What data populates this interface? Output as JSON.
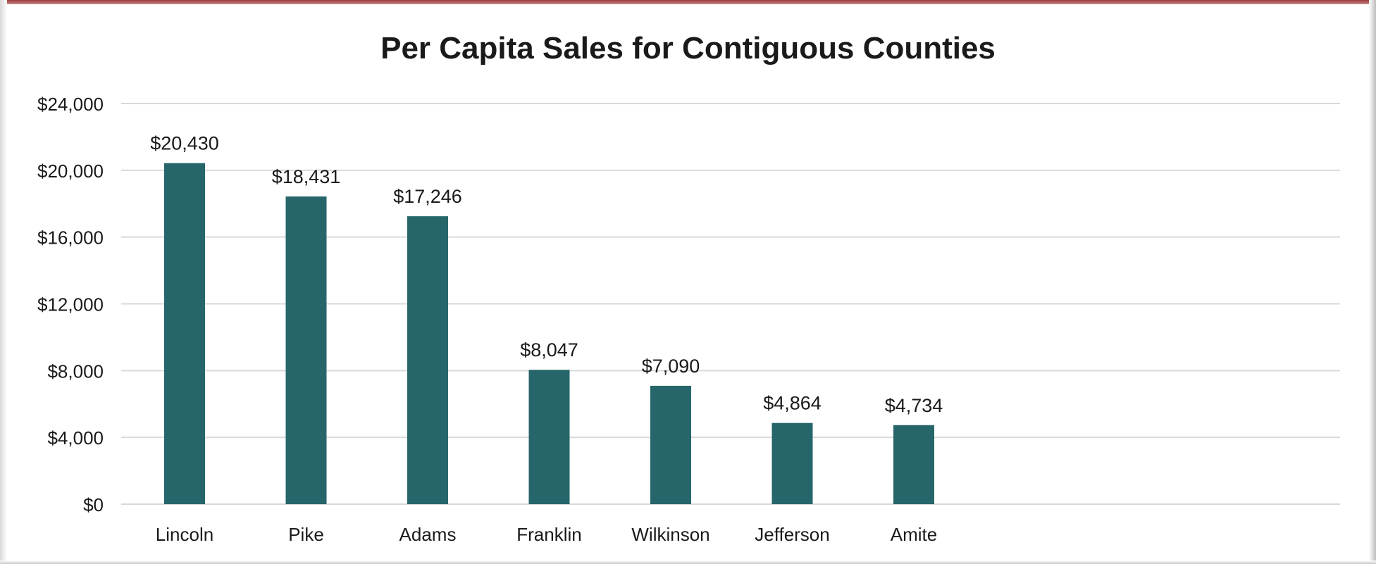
{
  "chart_data": {
    "type": "bar",
    "title": "Per Capita Sales for Contiguous Counties",
    "categories": [
      "Lincoln",
      "Pike",
      "Adams",
      "Franklin",
      "Wilkinson",
      "Jefferson",
      "Amite"
    ],
    "values": [
      20430,
      18431,
      17246,
      8047,
      7090,
      4864,
      4734
    ],
    "data_labels": [
      "$20,430",
      "$18,431",
      "$17,246",
      "$8,047",
      "$7,090",
      "$4,864",
      "$4,734"
    ],
    "y_ticks": [
      0,
      4000,
      8000,
      12000,
      16000,
      20000,
      24000
    ],
    "y_tick_labels": [
      "$0",
      "$4,000",
      "$8,000",
      "$12,000",
      "$16,000",
      "$20,000",
      "$24,000"
    ],
    "ylim": [
      0,
      24000
    ],
    "grid": true,
    "legend": false,
    "xlabel": "",
    "ylabel": "",
    "colors": {
      "bar": "#26666b",
      "grid": "#d9d9d9",
      "text": "#1a1a1a",
      "frame_accent": "#9b3b3b"
    }
  }
}
